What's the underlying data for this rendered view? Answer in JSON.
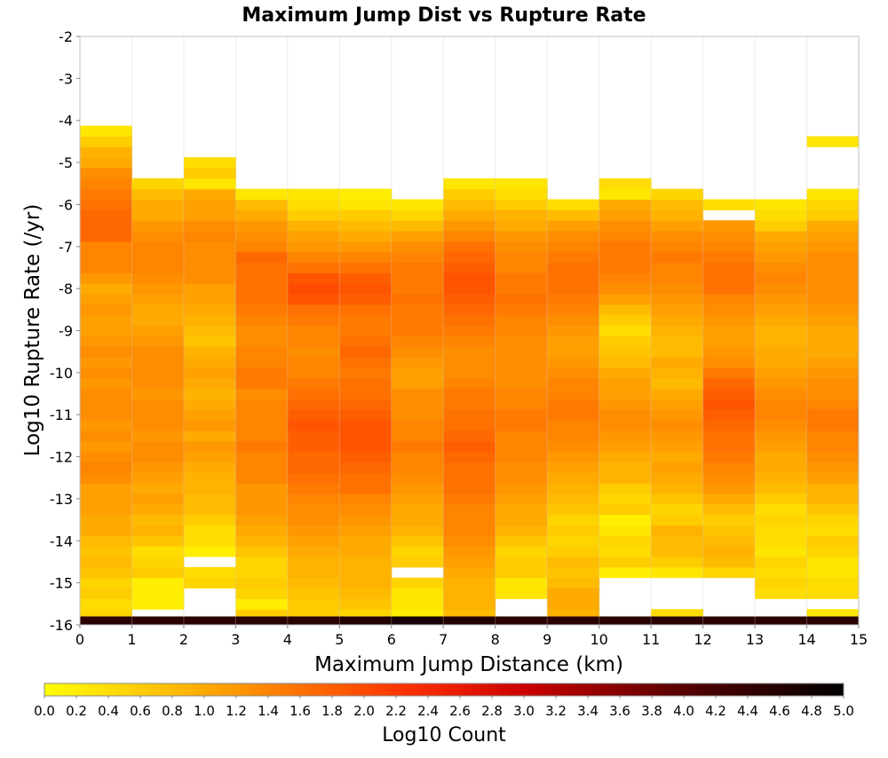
{
  "chart_data": {
    "type": "heatmap",
    "title": "Maximum Jump Dist vs Rupture Rate",
    "xlabel": "Maximum Jump Distance (km)",
    "ylabel": "Log10 Rupture Rate (/yr)",
    "colorbar_label": "Log10 Count",
    "xlim": [
      0,
      15
    ],
    "ylim": [
      -16,
      -2
    ],
    "x_ticks": [
      "0",
      "1",
      "2",
      "3",
      "4",
      "5",
      "6",
      "7",
      "8",
      "9",
      "10",
      "11",
      "12",
      "13",
      "14",
      "15"
    ],
    "y_ticks": [
      "-2",
      "-3",
      "-4",
      "-5",
      "-6",
      "-7",
      "-8",
      "-9",
      "-10",
      "-11",
      "-12",
      "-13",
      "-14",
      "-15",
      "-16"
    ],
    "colorbar_ticks": [
      "0.0",
      "0.2",
      "0.4",
      "0.6",
      "0.8",
      "1.0",
      "1.2",
      "1.4",
      "1.6",
      "1.8",
      "2.0",
      "2.2",
      "2.4",
      "2.6",
      "2.8",
      "3.0",
      "3.2",
      "3.4",
      "3.6",
      "3.8",
      "4.0",
      "4.2",
      "4.4",
      "4.6",
      "4.8",
      "5.0"
    ],
    "color_range": [
      0,
      5
    ],
    "colorscale": [
      "#ffff00",
      "#ff9900",
      "#ee1100",
      "#990000",
      "#000000"
    ],
    "x_bin_width_km": 1,
    "y_bin_width": 0.25,
    "y_bin_start": -15.75,
    "columns": [
      {
        "x": 0.5,
        "values": [
          0.5,
          0.4,
          0.6,
          0.5,
          0.7,
          0.8,
          0.7,
          0.8,
          1.0,
          1.0,
          1.1,
          1.1,
          1.1,
          1.3,
          1.4,
          1.3,
          1.2,
          1.3,
          1.2,
          1.3,
          1.3,
          1.3,
          1.2,
          1.3,
          1.2,
          1.3,
          1.2,
          1.1,
          1.1,
          1.2,
          1.1,
          1.0,
          1.2,
          1.4,
          1.4,
          1.4,
          1.7,
          1.7,
          1.7,
          1.6,
          1.5,
          1.4,
          1.3,
          1.0,
          0.9,
          0.6,
          0.3,
          null,
          null,
          null,
          null,
          null
        ]
      },
      {
        "x": 1.5,
        "values": [
          null,
          0.2,
          0.2,
          0.2,
          0.6,
          0.5,
          0.4,
          0.7,
          0.9,
          0.8,
          1.0,
          1.1,
          1.0,
          1.1,
          1.2,
          1.3,
          1.3,
          1.2,
          1.3,
          1.3,
          1.3,
          1.2,
          1.3,
          1.3,
          1.3,
          1.3,
          1.2,
          1.1,
          1.0,
          1.0,
          1.1,
          1.2,
          1.3,
          1.4,
          1.4,
          1.4,
          1.3,
          1.2,
          1.0,
          1.0,
          0.8,
          0.5,
          null,
          null,
          null,
          null,
          null,
          null,
          null,
          null,
          null,
          null
        ]
      },
      {
        "x": 2.5,
        "values": [
          null,
          null,
          null,
          0.5,
          0.4,
          null,
          0.2,
          0.4,
          0.4,
          0.6,
          0.8,
          0.8,
          0.9,
          0.9,
          1.0,
          1.1,
          1.2,
          1.0,
          1.2,
          1.1,
          1.0,
          0.9,
          1.0,
          1.1,
          1.0,
          0.9,
          0.7,
          0.8,
          0.9,
          1.0,
          1.1,
          1.1,
          1.3,
          1.3,
          1.3,
          1.3,
          1.4,
          1.3,
          1.1,
          1.1,
          1.0,
          0.3,
          0.6,
          0.4,
          null,
          null,
          null,
          null,
          null,
          null,
          null,
          null
        ]
      },
      {
        "x": 3.5,
        "values": [
          0.6,
          0.2,
          0.5,
          0.6,
          0.5,
          0.5,
          0.7,
          0.9,
          1.0,
          1.1,
          1.2,
          1.2,
          1.2,
          1.4,
          1.4,
          1.4,
          1.5,
          1.4,
          1.4,
          1.4,
          1.4,
          1.3,
          1.5,
          1.5,
          1.4,
          1.4,
          1.3,
          1.3,
          1.4,
          1.5,
          1.6,
          1.6,
          1.6,
          1.6,
          1.7,
          1.4,
          1.3,
          1.2,
          1.0,
          0.8,
          0.3,
          null,
          null,
          null,
          null,
          null,
          null,
          null,
          null,
          null,
          null,
          null
        ]
      },
      {
        "x": 4.5,
        "values": [
          0.6,
          0.6,
          0.7,
          0.8,
          0.9,
          0.9,
          1.0,
          1.1,
          1.2,
          1.3,
          1.3,
          1.4,
          1.5,
          1.6,
          1.7,
          1.7,
          1.8,
          1.8,
          1.9,
          1.8,
          1.7,
          1.6,
          1.5,
          1.4,
          1.4,
          1.3,
          1.4,
          1.4,
          1.5,
          1.6,
          1.9,
          2.0,
          1.9,
          1.6,
          1.4,
          1.2,
          1.1,
          0.9,
          0.6,
          0.4,
          0.3,
          null,
          null,
          null,
          null,
          null,
          null,
          null,
          null,
          null,
          null,
          null
        ]
      },
      {
        "x": 5.5,
        "values": [
          0.5,
          0.7,
          0.8,
          0.9,
          0.9,
          0.9,
          1.0,
          1.0,
          1.1,
          1.2,
          1.3,
          1.4,
          1.6,
          1.6,
          1.7,
          1.8,
          1.9,
          1.9,
          1.9,
          1.8,
          1.7,
          1.6,
          1.6,
          1.5,
          1.6,
          1.7,
          1.6,
          1.5,
          1.5,
          1.6,
          1.8,
          1.9,
          1.8,
          1.6,
          1.4,
          1.2,
          1.0,
          0.8,
          0.6,
          0.3,
          0.2,
          null,
          null,
          null,
          null,
          null,
          null,
          null,
          null,
          null,
          null,
          null
        ]
      },
      {
        "x": 6.5,
        "values": [
          0.2,
          0.3,
          0.3,
          0.5,
          null,
          0.6,
          0.5,
          0.7,
          0.9,
          1.0,
          1.0,
          1.1,
          1.2,
          1.3,
          1.4,
          1.4,
          1.5,
          1.4,
          1.4,
          1.3,
          1.3,
          1.3,
          1.1,
          1.1,
          1.2,
          1.3,
          1.4,
          1.5,
          1.5,
          1.5,
          1.6,
          1.5,
          1.5,
          1.5,
          1.4,
          1.3,
          1.1,
          0.8,
          0.5,
          0.3,
          null,
          null,
          null,
          null,
          null,
          null,
          null,
          null,
          null,
          null,
          null,
          null
        ]
      },
      {
        "x": 7.5,
        "values": [
          0.8,
          0.9,
          0.9,
          0.9,
          1.0,
          1.1,
          1.2,
          1.3,
          1.4,
          1.4,
          1.4,
          1.5,
          1.6,
          1.6,
          1.6,
          1.7,
          1.8,
          1.7,
          1.6,
          1.6,
          1.5,
          1.5,
          1.4,
          1.3,
          1.3,
          1.3,
          1.4,
          1.5,
          1.6,
          1.7,
          1.8,
          1.9,
          1.9,
          1.8,
          1.7,
          1.6,
          1.4,
          1.2,
          1.0,
          0.8,
          0.6,
          0.3,
          null,
          null,
          null,
          null,
          null,
          null,
          null,
          null,
          null,
          null
        ]
      },
      {
        "x": 8.5,
        "values": [
          null,
          null,
          0.3,
          0.3,
          0.6,
          0.6,
          0.5,
          0.7,
          0.9,
          1.0,
          1.0,
          1.1,
          1.2,
          1.3,
          1.3,
          1.4,
          1.4,
          1.4,
          1.5,
          1.5,
          1.4,
          1.4,
          1.3,
          1.3,
          1.3,
          1.3,
          1.3,
          1.4,
          1.4,
          1.5,
          1.6,
          1.5,
          1.5,
          1.4,
          1.4,
          1.3,
          1.2,
          1.0,
          0.9,
          0.6,
          0.4,
          0.3,
          null,
          null,
          null,
          null,
          null,
          null,
          null,
          null,
          null,
          null
        ]
      },
      {
        "x": 9.5,
        "values": [
          0.9,
          1.0,
          1.0,
          0.8,
          0.7,
          0.8,
          0.6,
          0.5,
          0.6,
          0.5,
          0.7,
          0.8,
          0.9,
          1.0,
          1.1,
          1.2,
          1.3,
          1.4,
          1.4,
          1.5,
          1.5,
          1.4,
          1.4,
          1.3,
          1.2,
          1.1,
          1.1,
          1.2,
          1.3,
          1.4,
          1.5,
          1.6,
          1.6,
          1.6,
          1.5,
          1.4,
          1.3,
          1.1,
          0.8,
          0.4,
          null,
          null,
          null,
          null,
          null,
          null,
          null,
          null,
          null,
          null,
          null,
          null
        ]
      },
      {
        "x": 10.5,
        "values": [
          null,
          null,
          null,
          null,
          0.2,
          0.6,
          0.4,
          0.5,
          0.3,
          0.2,
          0.6,
          0.5,
          0.6,
          0.9,
          0.9,
          1.0,
          1.1,
          1.2,
          1.3,
          1.3,
          1.2,
          1.1,
          1.1,
          1.0,
          0.8,
          0.7,
          0.6,
          0.4,
          0.6,
          0.8,
          1.1,
          1.3,
          1.4,
          1.5,
          1.5,
          1.5,
          1.4,
          1.3,
          1.1,
          1.0,
          0.3,
          0.4,
          null,
          null,
          null,
          null,
          null,
          null,
          null,
          null,
          null,
          null
        ]
      },
      {
        "x": 11.5,
        "values": [
          0.4,
          null,
          null,
          null,
          0.3,
          0.6,
          0.8,
          0.8,
          0.9,
          0.6,
          0.5,
          0.7,
          0.9,
          1.0,
          1.1,
          1.0,
          1.1,
          1.2,
          1.3,
          1.2,
          1.1,
          1.0,
          0.8,
          0.9,
          1.0,
          0.8,
          0.8,
          0.9,
          1.0,
          1.1,
          1.2,
          1.3,
          1.4,
          1.4,
          1.5,
          1.4,
          1.3,
          1.1,
          0.9,
          0.8,
          0.5,
          null,
          null,
          null,
          null,
          null,
          null,
          null,
          null,
          null,
          null,
          null
        ]
      },
      {
        "x": 12.5,
        "values": [
          null,
          null,
          null,
          null,
          0.5,
          0.8,
          0.9,
          0.8,
          0.7,
          0.6,
          0.8,
          1.0,
          1.2,
          1.3,
          1.4,
          1.5,
          1.6,
          1.6,
          1.7,
          1.8,
          1.9,
          1.8,
          1.7,
          1.5,
          1.3,
          1.2,
          1.1,
          1.1,
          1.2,
          1.3,
          1.4,
          1.6,
          1.6,
          1.6,
          1.5,
          1.4,
          1.3,
          1.2,
          null,
          0.4,
          null,
          null,
          null,
          null,
          null,
          null,
          null,
          null,
          null,
          null,
          null,
          null
        ]
      },
      {
        "x": 13.5,
        "values": [
          null,
          null,
          0.4,
          0.5,
          0.4,
          0.5,
          0.3,
          0.4,
          0.4,
          0.5,
          0.4,
          0.6,
          0.8,
          0.9,
          1.0,
          1.0,
          1.1,
          1.2,
          1.3,
          1.4,
          1.4,
          1.3,
          1.2,
          1.1,
          1.0,
          1.0,
          0.9,
          0.9,
          1.0,
          1.1,
          1.2,
          1.3,
          1.4,
          1.3,
          1.2,
          1.1,
          1.0,
          0.6,
          0.4,
          0.3,
          null,
          null,
          null,
          null,
          null,
          null,
          null,
          null,
          null,
          null,
          null,
          null
        ]
      },
      {
        "x": 14.5,
        "values": [
          0.3,
          null,
          0.4,
          0.4,
          0.3,
          0.3,
          0.5,
          0.6,
          0.4,
          0.5,
          0.7,
          0.9,
          0.9,
          1.1,
          1.2,
          1.3,
          1.4,
          1.4,
          1.5,
          1.5,
          1.4,
          1.3,
          1.3,
          1.2,
          1.1,
          1.0,
          1.0,
          1.0,
          1.1,
          1.2,
          1.3,
          1.3,
          1.3,
          1.3,
          1.3,
          1.2,
          1.1,
          1.0,
          0.6,
          0.5,
          0.3,
          null,
          null,
          null,
          null,
          0.3,
          null,
          null,
          null,
          null,
          null,
          null
        ]
      }
    ],
    "floor_row": {
      "y_center": -15.9,
      "values": [
        4.5,
        4.5,
        4.5,
        4.5,
        4.5,
        4.6,
        4.7,
        4.6,
        4.5,
        4.5,
        4.5,
        4.5,
        4.5,
        4.5,
        4.5
      ]
    }
  }
}
